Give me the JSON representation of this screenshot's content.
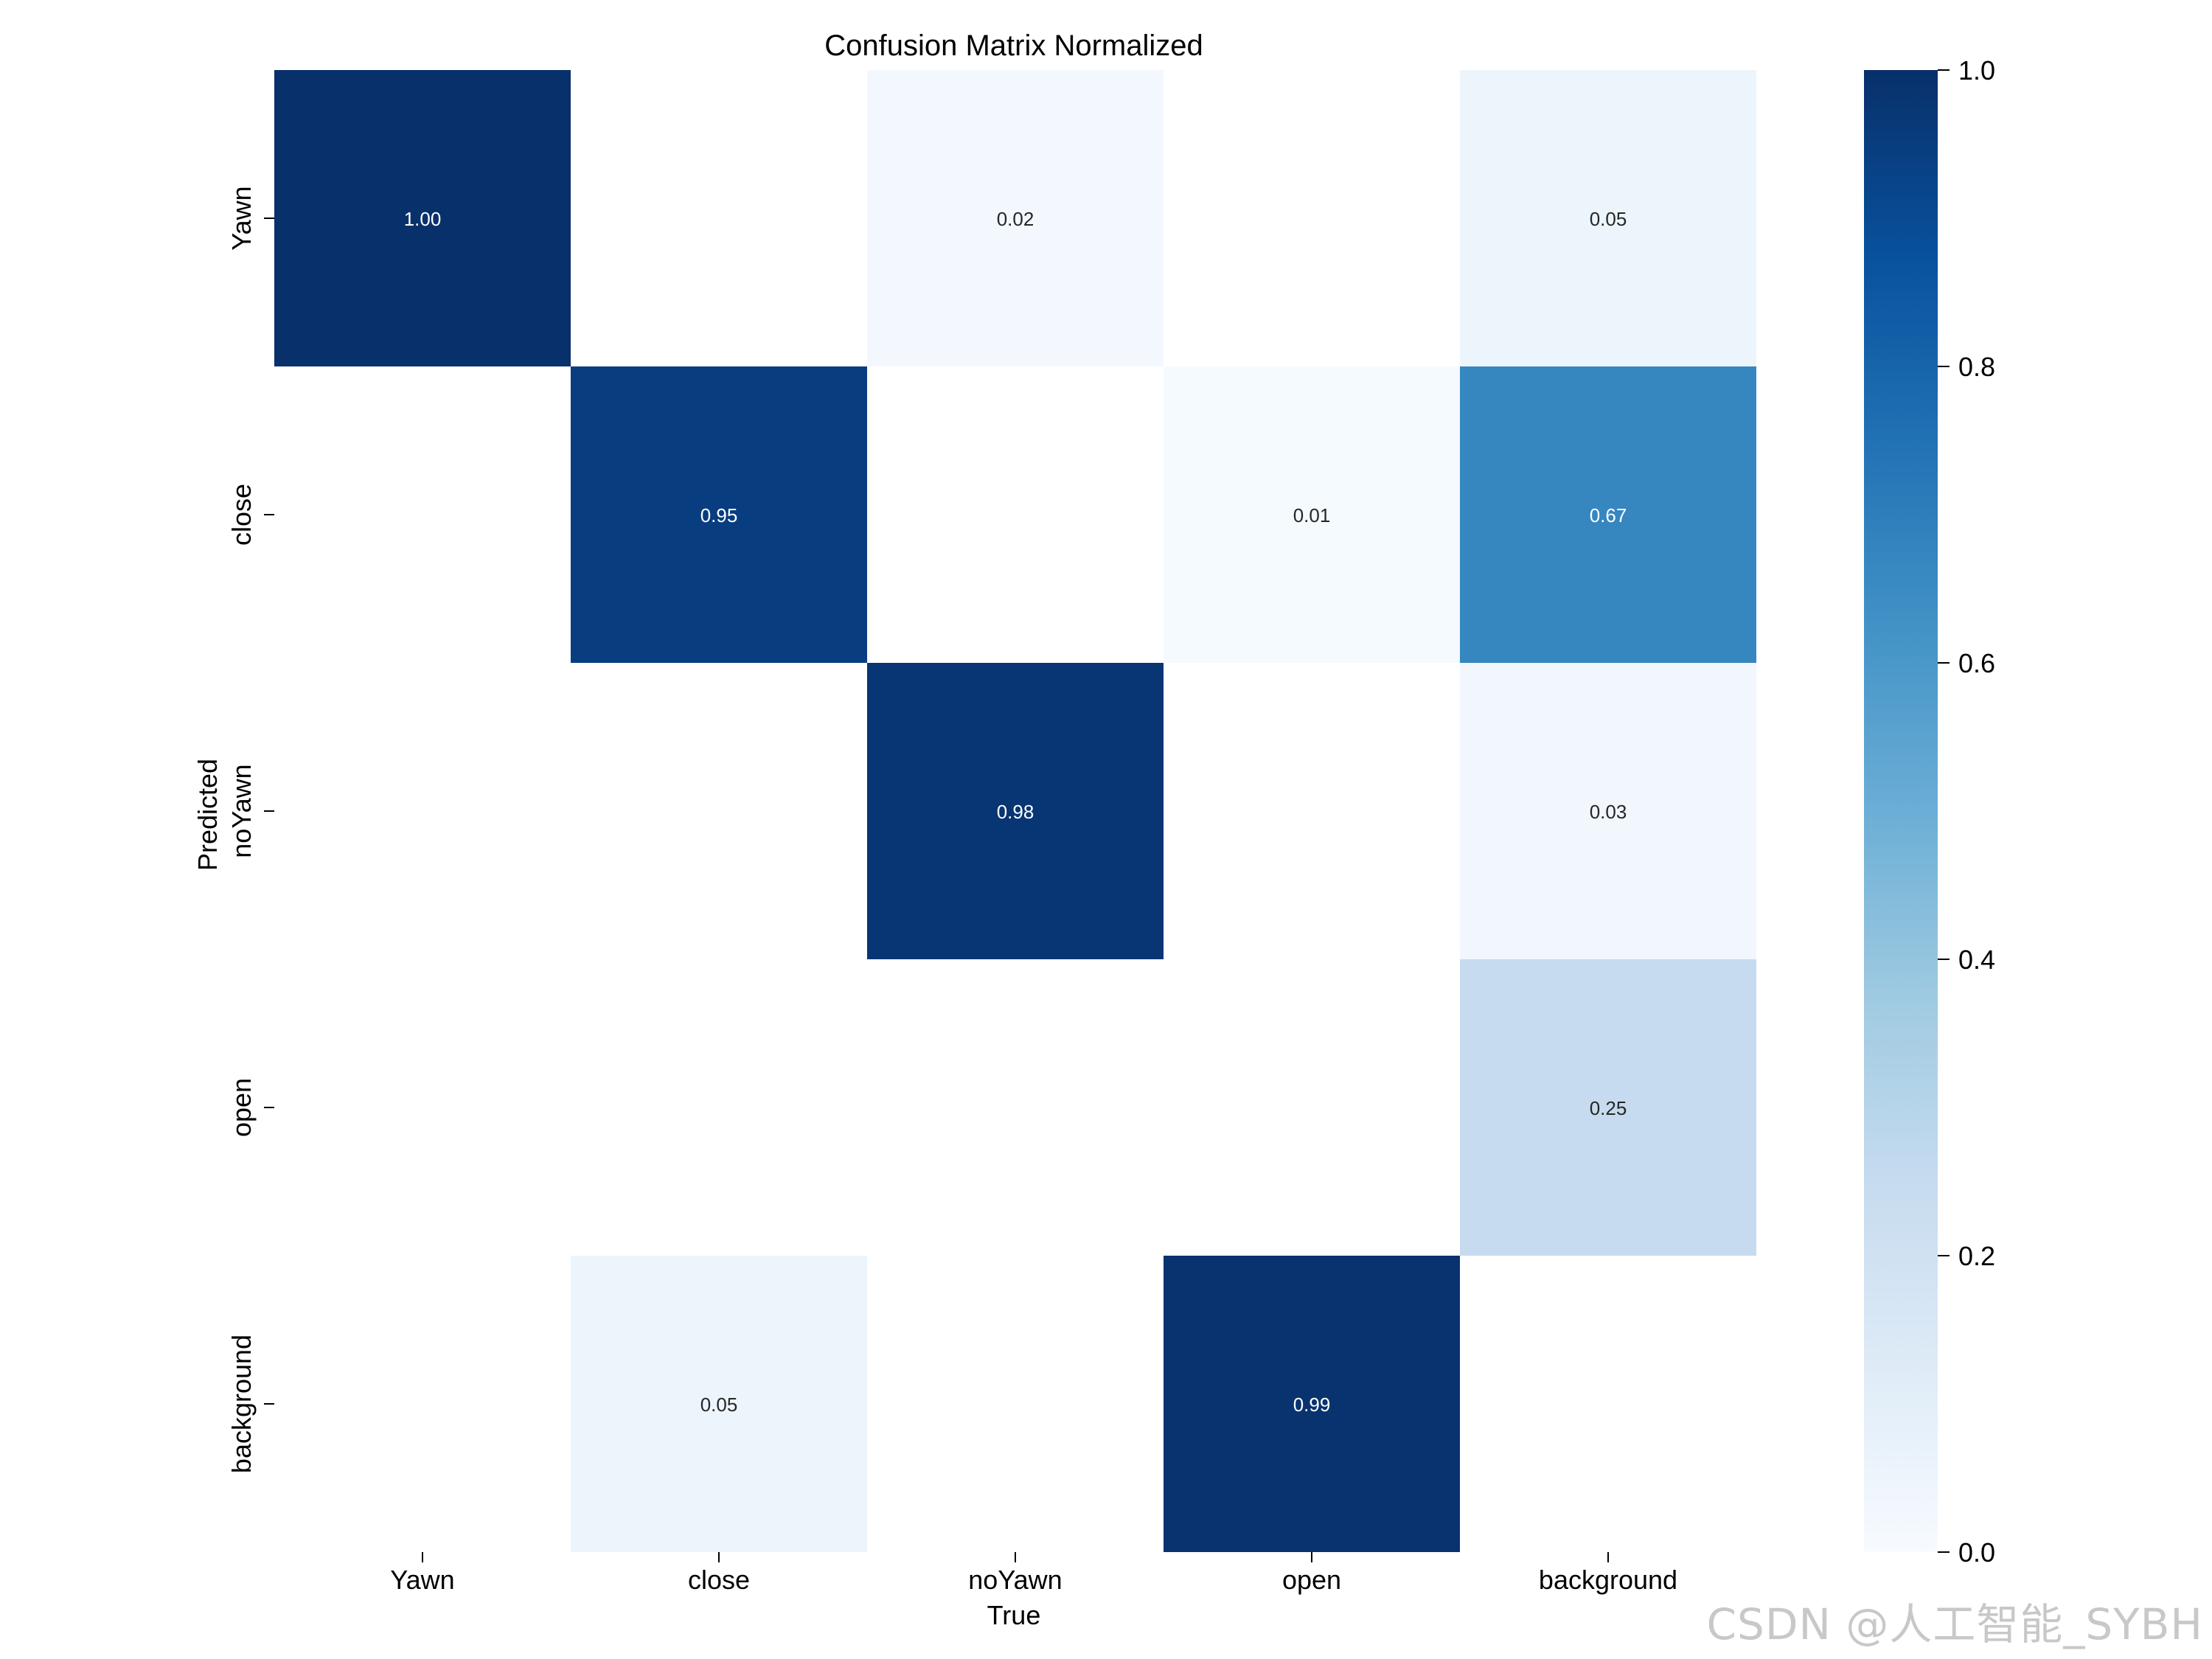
{
  "chart_data": {
    "type": "heatmap",
    "title": "Confusion Matrix Normalized",
    "xlabel": "True",
    "ylabel": "Predicted",
    "x_categories": [
      "Yawn",
      "close",
      "noYawn",
      "open",
      "background"
    ],
    "y_categories": [
      "Yawn",
      "close",
      "noYawn",
      "open",
      "background"
    ],
    "values": [
      [
        1.0,
        null,
        0.02,
        null,
        0.05
      ],
      [
        null,
        0.95,
        null,
        0.01,
        0.67
      ],
      [
        null,
        null,
        0.98,
        null,
        0.03
      ],
      [
        null,
        null,
        null,
        null,
        0.25
      ],
      [
        null,
        0.05,
        null,
        0.99,
        null
      ]
    ],
    "value_format": "0.00",
    "colormap": "Blues",
    "vmin": 0.0,
    "vmax": 1.0,
    "colorbar_ticks": [
      "0.0",
      "0.2",
      "0.4",
      "0.6",
      "0.8",
      "1.0"
    ],
    "colorbar_tick_values": [
      0.0,
      0.2,
      0.4,
      0.6,
      0.8,
      1.0
    ]
  },
  "watermark": "CSDN @人工智能_SYBH"
}
